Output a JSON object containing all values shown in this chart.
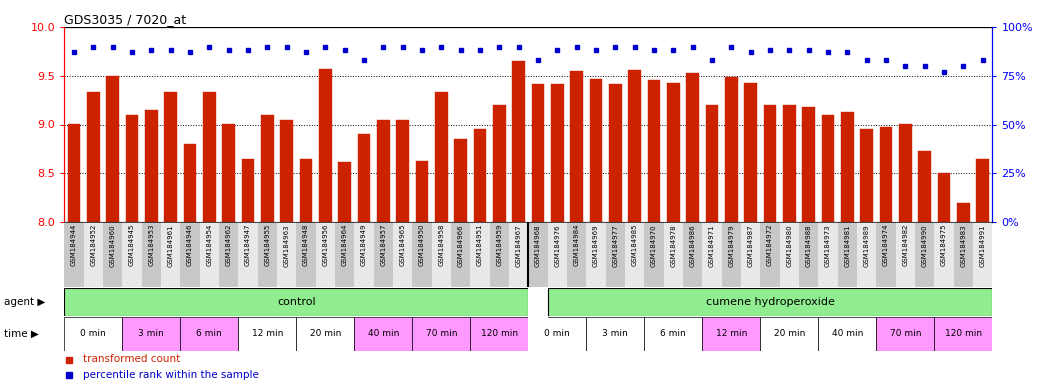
{
  "title": "GDS3035 / 7020_at",
  "samples": [
    "GSM184944",
    "GSM184952",
    "GSM184960",
    "GSM184945",
    "GSM184953",
    "GSM184961",
    "GSM184946",
    "GSM184954",
    "GSM184962",
    "GSM184947",
    "GSM184955",
    "GSM184963",
    "GSM184948",
    "GSM184956",
    "GSM184964",
    "GSM184949",
    "GSM184957",
    "GSM184965",
    "GSM184950",
    "GSM184958",
    "GSM184966",
    "GSM184951",
    "GSM184959",
    "GSM184967",
    "GSM184968",
    "GSM184976",
    "GSM184984",
    "GSM184969",
    "GSM184977",
    "GSM184985",
    "GSM184970",
    "GSM184978",
    "GSM184986",
    "GSM184971",
    "GSM184979",
    "GSM184987",
    "GSM184972",
    "GSM184980",
    "GSM184988",
    "GSM184973",
    "GSM184981",
    "GSM184989",
    "GSM184974",
    "GSM184982",
    "GSM184990",
    "GSM184975",
    "GSM184983",
    "GSM184991"
  ],
  "bar_values": [
    9.0,
    9.33,
    9.5,
    9.1,
    9.15,
    9.33,
    8.8,
    9.33,
    9.0,
    8.65,
    9.1,
    9.05,
    8.65,
    9.57,
    8.62,
    8.9,
    9.05,
    9.05,
    8.63,
    9.33,
    8.85,
    8.95,
    9.2,
    9.65,
    9.42,
    9.42,
    9.55,
    9.47,
    9.42,
    9.56,
    9.46,
    9.43,
    9.53,
    9.2,
    9.49,
    9.43,
    9.2,
    9.2,
    9.18,
    9.1,
    9.13,
    8.95,
    8.97,
    9.0,
    8.73,
    8.5,
    8.2,
    8.65
  ],
  "dot_values": [
    87,
    90,
    90,
    87,
    88,
    88,
    87,
    90,
    88,
    88,
    90,
    90,
    87,
    90,
    88,
    83,
    90,
    90,
    88,
    90,
    88,
    88,
    90,
    90,
    83,
    88,
    90,
    88,
    90,
    90,
    88,
    88,
    90,
    83,
    90,
    87,
    88,
    88,
    88,
    87,
    87,
    83,
    83,
    80,
    80,
    77,
    80,
    83
  ],
  "bar_color": "#CC2200",
  "dot_color": "#0000CC",
  "ylim_left": [
    8.0,
    10.0
  ],
  "ylim_right": [
    0,
    100
  ],
  "yticks_left": [
    8.0,
    8.5,
    9.0,
    9.5,
    10.0
  ],
  "yticks_right": [
    0,
    25,
    50,
    75,
    100
  ],
  "grid_lines": [
    8.5,
    9.0,
    9.5
  ],
  "control_label": "control",
  "cumene_label": "cumene hydroperoxide",
  "agent_bg": "#90EE90",
  "time_labels": [
    "0 min",
    "3 min",
    "6 min",
    "12 min",
    "20 min",
    "40 min",
    "70 min",
    "120 min"
  ],
  "time_colors_ctrl": [
    "#ffffff",
    "#ff99ff",
    "#ff99ff",
    "#ffffff",
    "#ffffff",
    "#ff99ff",
    "#ff99ff",
    "#ff99ff"
  ],
  "time_colors_cum": [
    "#ffffff",
    "#ffffff",
    "#ffffff",
    "#ff99ff",
    "#ffffff",
    "#ffffff",
    "#ff99ff",
    "#ff99ff"
  ],
  "legend_bar_label": "transformed count",
  "legend_dot_label": "percentile rank within the sample"
}
